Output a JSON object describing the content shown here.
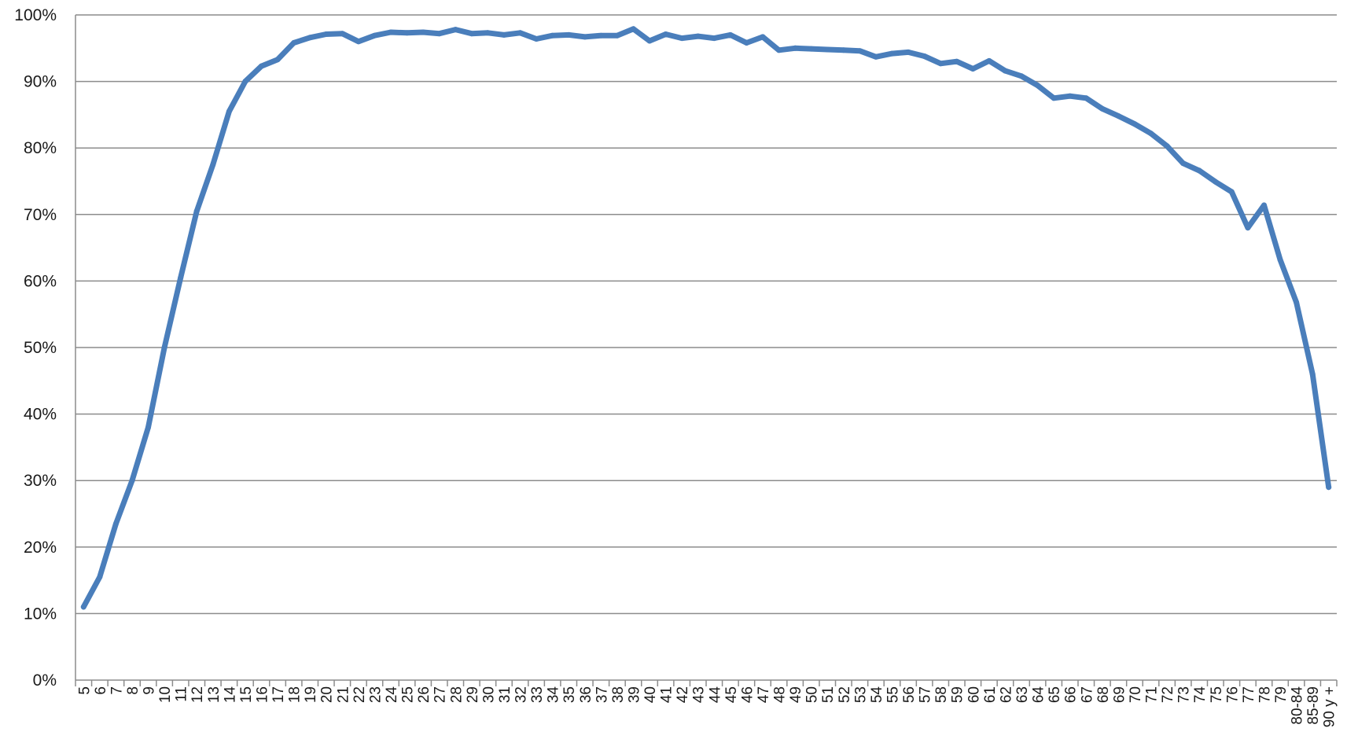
{
  "chart_data": {
    "type": "line",
    "title": "",
    "xlabel": "",
    "ylabel": "",
    "ylim": [
      0,
      100
    ],
    "yticks": [
      "0%",
      "10%",
      "20%",
      "30%",
      "40%",
      "50%",
      "60%",
      "70%",
      "80%",
      "90%",
      "100%"
    ],
    "grid": true,
    "legend": "none",
    "line_color": "#4a7ebb",
    "categories": [
      "5",
      "6",
      "7",
      "8",
      "9",
      "10",
      "11",
      "12",
      "13",
      "14",
      "15",
      "16",
      "17",
      "18",
      "19",
      "20",
      "21",
      "22",
      "23",
      "24",
      "25",
      "26",
      "27",
      "28",
      "29",
      "30",
      "31",
      "32",
      "33",
      "34",
      "35",
      "36",
      "37",
      "38",
      "39",
      "40",
      "41",
      "42",
      "43",
      "44",
      "45",
      "46",
      "47",
      "48",
      "49",
      "50",
      "51",
      "52",
      "53",
      "54",
      "55",
      "56",
      "57",
      "58",
      "59",
      "60",
      "61",
      "62",
      "63",
      "64",
      "65",
      "66",
      "67",
      "68",
      "69",
      "70",
      "71",
      "72",
      "73",
      "74",
      "75",
      "76",
      "77",
      "78",
      "79",
      "80-84",
      "85-89",
      "90 y +"
    ],
    "series": [
      {
        "values": [
          11.0,
          15.5,
          23.5,
          30.0,
          38.0,
          50.0,
          60.5,
          70.5,
          77.5,
          85.5,
          90.0,
          92.3,
          93.3,
          95.8,
          96.6,
          97.1,
          97.2,
          96.0,
          96.9,
          97.4,
          97.3,
          97.4,
          97.2,
          97.8,
          97.2,
          97.3,
          97.0,
          97.3,
          96.4,
          96.9,
          97.0,
          96.7,
          96.9,
          96.9,
          97.9,
          96.1,
          97.1,
          96.5,
          96.8,
          96.5,
          97.0,
          95.8,
          96.7,
          94.7,
          95.0,
          94.9,
          94.8,
          94.7,
          94.6,
          93.7,
          94.2,
          94.4,
          93.8,
          92.7,
          93.0,
          91.9,
          93.1,
          91.6,
          90.8,
          89.4,
          87.5,
          87.8,
          87.5,
          85.9,
          84.8,
          83.6,
          82.2,
          80.3,
          77.7,
          76.6,
          74.9,
          73.4,
          68.0,
          71.4,
          63.2,
          56.8,
          46.0,
          29.0
        ]
      }
    ]
  }
}
